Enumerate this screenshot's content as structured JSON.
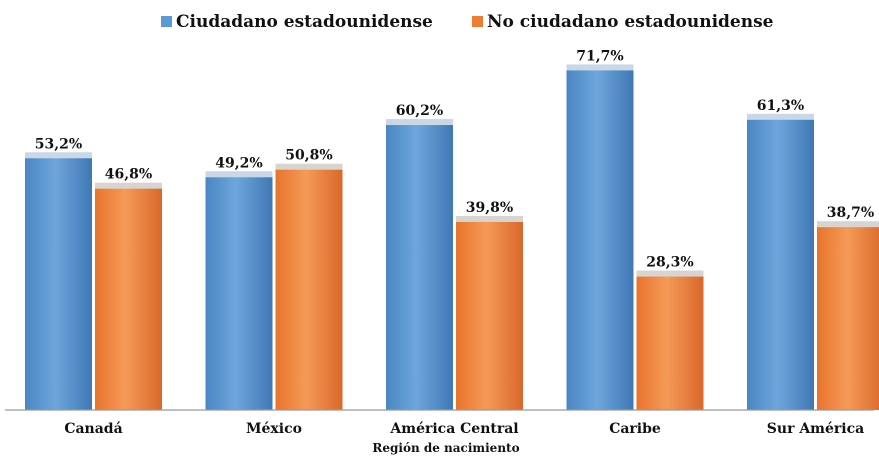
{
  "chart_data": {
    "type": "bar",
    "title": "",
    "xlabel": "Región de nacimiento",
    "ylabel": "",
    "categories": [
      "Canadá",
      "México",
      "América Central",
      "Caribe",
      "Sur América"
    ],
    "series": [
      {
        "name": "Ciudadano estadounidense",
        "color": "#5b9bd5",
        "values": [
          53.2,
          49.2,
          60.2,
          71.7,
          61.3
        ],
        "labels": [
          "53,2%",
          "49,2%",
          "60,2%",
          "71,7%",
          "61,3%"
        ]
      },
      {
        "name": "No ciudadano estadounidense",
        "color": "#ed7d31",
        "values": [
          46.8,
          50.8,
          39.8,
          28.3,
          38.7
        ],
        "labels": [
          "46,8%",
          "50,8%",
          "39,8%",
          "28,3%",
          "38,7%"
        ]
      }
    ],
    "ylim": [
      0,
      75
    ],
    "grid": false,
    "legend_position": "top"
  }
}
